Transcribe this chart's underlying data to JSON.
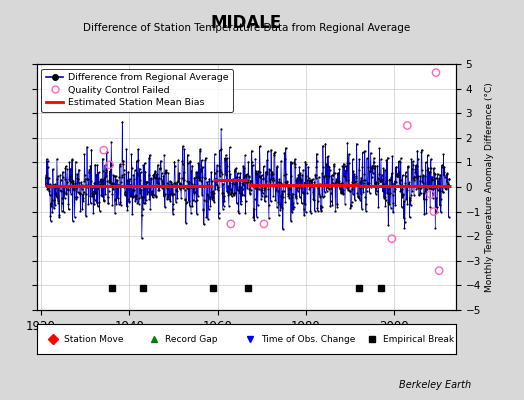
{
  "title": "MIDALE",
  "subtitle": "Difference of Station Temperature Data from Regional Average",
  "ylabel": "Monthly Temperature Anomaly Difference (°C)",
  "ylim": [
    -5,
    5
  ],
  "xlim": [
    1919,
    2014
  ],
  "bias_segments": [
    {
      "x": [
        1921,
        1936
      ],
      "y": [
        0.05,
        0.05
      ]
    },
    {
      "x": [
        1936,
        1943
      ],
      "y": [
        0.05,
        0.05
      ]
    },
    {
      "x": [
        1943,
        1959
      ],
      "y": [
        0.05,
        0.05
      ]
    },
    {
      "x": [
        1959,
        1967
      ],
      "y": [
        0.3,
        0.3
      ]
    },
    {
      "x": [
        1967,
        1992
      ],
      "y": [
        0.1,
        0.1
      ]
    },
    {
      "x": [
        1992,
        2013
      ],
      "y": [
        0.05,
        0.05
      ]
    }
  ],
  "empirical_breaks": [
    1936,
    1943,
    1959,
    1967,
    1992,
    1997
  ],
  "qc_failed_x": [
    1934.2,
    1935.5,
    1963.0,
    1970.5,
    1999.5,
    2003.0,
    2008.3,
    2009.0,
    2009.5,
    2010.2
  ],
  "qc_failed_y": [
    1.5,
    0.9,
    -1.5,
    -1.5,
    -2.1,
    2.5,
    -0.3,
    -1.0,
    4.65,
    -3.4
  ],
  "background_color": "#d8d8d8",
  "plot_bg_color": "#ffffff",
  "line_color": "#0000cc",
  "fill_color": "#8888ff",
  "bias_color": "#ff0000",
  "qc_color": "#ff69b4",
  "grid_color": "#cccccc",
  "seed": 42,
  "n_months": 1100,
  "start_year": 1921.0,
  "end_year": 2012.5
}
